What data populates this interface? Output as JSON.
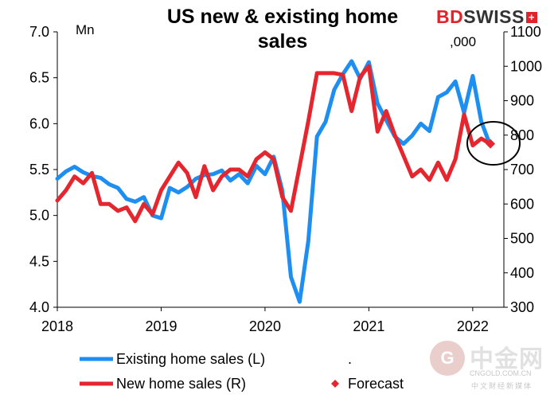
{
  "chart_data": {
    "type": "line",
    "title": "US new & existing home sales",
    "left_unit": "Mn",
    "right_unit": ",000",
    "left_axis": {
      "min": 4.0,
      "max": 7.0,
      "ticks": [
        "4.0",
        "4.5",
        "5.0",
        "5.5",
        "6.0",
        "6.5",
        "7.0"
      ]
    },
    "right_axis": {
      "min": 300,
      "max": 1100,
      "ticks": [
        "300",
        "400",
        "500",
        "600",
        "700",
        "800",
        "900",
        "1000",
        "1100"
      ]
    },
    "x_axis": {
      "start": 2018.0,
      "end": 2022.3,
      "ticks": [
        "2018",
        "2019",
        "2020",
        "2021",
        "2022"
      ]
    },
    "series": [
      {
        "name": "Existing home sales (L)",
        "axis": "left",
        "color": "#1e8ff0",
        "start": 2018.0,
        "step_months": 1,
        "values": [
          5.4,
          5.48,
          5.53,
          5.47,
          5.43,
          5.41,
          5.34,
          5.3,
          5.18,
          5.15,
          5.2,
          5.0,
          4.97,
          5.3,
          5.25,
          5.31,
          5.4,
          5.44,
          5.45,
          5.49,
          5.38,
          5.45,
          5.35,
          5.54,
          5.45,
          5.64,
          5.27,
          4.33,
          4.06,
          4.72,
          5.86,
          6.02,
          6.37,
          6.54,
          6.68,
          6.49,
          6.67,
          6.22,
          6.04,
          5.86,
          5.78,
          5.87,
          6.0,
          5.92,
          6.29,
          6.34,
          6.46,
          6.12,
          6.52,
          6.02,
          5.77
        ]
      },
      {
        "name": "New home sales (R)",
        "axis": "right",
        "color": "#e5262e",
        "start": 2018.0,
        "step_months": 1,
        "values": [
          610,
          640,
          680,
          660,
          690,
          600,
          600,
          580,
          590,
          550,
          600,
          570,
          640,
          680,
          720,
          690,
          620,
          710,
          640,
          680,
          700,
          700,
          680,
          730,
          750,
          730,
          620,
          580,
          710,
          840,
          980,
          980,
          980,
          975,
          870,
          970,
          1000,
          810,
          870,
          800,
          740,
          680,
          700,
          670,
          720,
          670,
          730,
          860,
          770,
          790,
          775
        ]
      },
      {
        "name": "Forecast",
        "axis": "right",
        "color": "#e5262e",
        "marker": "diamond",
        "x": 2022.17,
        "value": 775
      }
    ],
    "annotations": [
      "circle around latest data points"
    ],
    "legend": {
      "existing": "Existing home sales (L)",
      "new": "New home sales (R)",
      "forecast": "Forecast",
      "dot": "."
    }
  },
  "brand": {
    "bd": "BD",
    "swiss": "SWISS",
    "flag": "+"
  },
  "watermark": {
    "logo": "G",
    "text": "中金网",
    "sub": "CNGOLD.COM.CN",
    "sub2": "中文财经新媒体"
  }
}
